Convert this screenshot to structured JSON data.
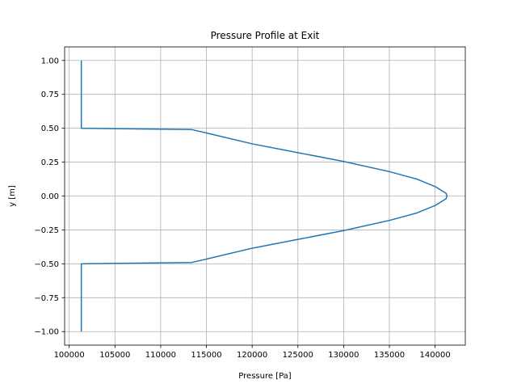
{
  "chart_data": {
    "type": "line",
    "title": "Pressure Profile at Exit",
    "xlabel": "Pressure [Pa]",
    "ylabel": "y [m]",
    "xlim": [
      99500,
      143300
    ],
    "ylim": [
      -1.1,
      1.1
    ],
    "xticks": [
      100000,
      105000,
      110000,
      115000,
      120000,
      125000,
      130000,
      135000,
      140000
    ],
    "xtick_labels": [
      "100000",
      "105000",
      "110000",
      "115000",
      "120000",
      "125000",
      "130000",
      "135000",
      "140000"
    ],
    "yticks": [
      1.0,
      0.75,
      0.5,
      0.25,
      0.0,
      -0.25,
      -0.5,
      -0.75,
      -1.0
    ],
    "ytick_labels": [
      "1.00",
      "0.75",
      "0.50",
      "0.25",
      "0.00",
      "−0.25",
      "−0.50",
      "−0.75",
      "−1.00"
    ],
    "grid": true,
    "series": [
      {
        "color": "#1f77b4",
        "x": [
          101325,
          101325,
          113400,
          115000,
          120000,
          125000,
          130000,
          135000,
          138000,
          140000,
          141200,
          141300,
          141200,
          140000,
          138000,
          135000,
          130000,
          125000,
          120000,
          115000,
          113400,
          101325,
          101325
        ],
        "y": [
          1.0,
          0.5,
          0.49,
          0.465,
          0.385,
          0.32,
          0.255,
          0.18,
          0.125,
          0.07,
          0.02,
          0.0,
          -0.02,
          -0.07,
          -0.125,
          -0.18,
          -0.255,
          -0.32,
          -0.385,
          -0.465,
          -0.49,
          -0.5,
          -1.0
        ]
      }
    ]
  }
}
